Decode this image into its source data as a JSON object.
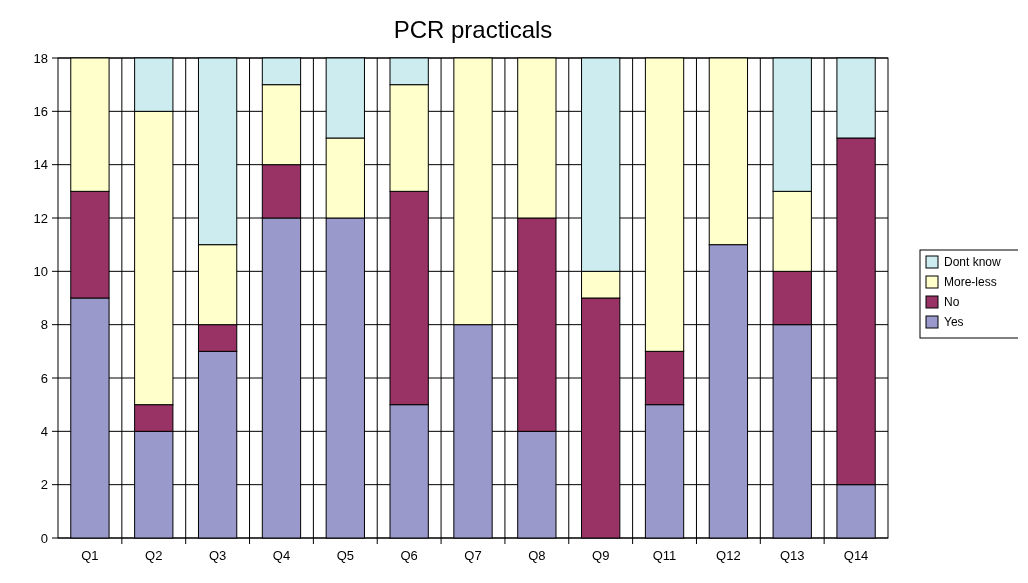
{
  "chart_data": {
    "type": "bar",
    "title": "PCR practicals",
    "stacked": true,
    "categories": [
      "Q1",
      "Q2",
      "Q3",
      "Q4",
      "Q5",
      "Q6",
      "Q7",
      "Q8",
      "Q9",
      "Q11",
      "Q12",
      "Q13",
      "Q14"
    ],
    "series": [
      {
        "name": "Yes",
        "color": "#9999cc",
        "values": [
          9,
          4,
          7,
          12,
          12,
          5,
          8,
          4,
          0,
          5,
          11,
          8,
          2
        ]
      },
      {
        "name": "No",
        "color": "#993366",
        "values": [
          4,
          1,
          1,
          2,
          0,
          8,
          0,
          8,
          9,
          2,
          0,
          2,
          13
        ]
      },
      {
        "name": "More-less",
        "color": "#ffffcc",
        "values": [
          5,
          11,
          3,
          3,
          3,
          4,
          10,
          6,
          1,
          11,
          7,
          3,
          0
        ]
      },
      {
        "name": "Dont know",
        "color": "#ccecf0",
        "values": [
          0,
          2,
          7,
          1,
          3,
          1,
          0,
          0,
          8,
          0,
          0,
          5,
          3
        ]
      }
    ],
    "ylim": [
      0,
      18
    ],
    "yticks": [
      0,
      2,
      4,
      6,
      8,
      10,
      12,
      14,
      16,
      18
    ],
    "grid": "y",
    "legend": "right"
  }
}
